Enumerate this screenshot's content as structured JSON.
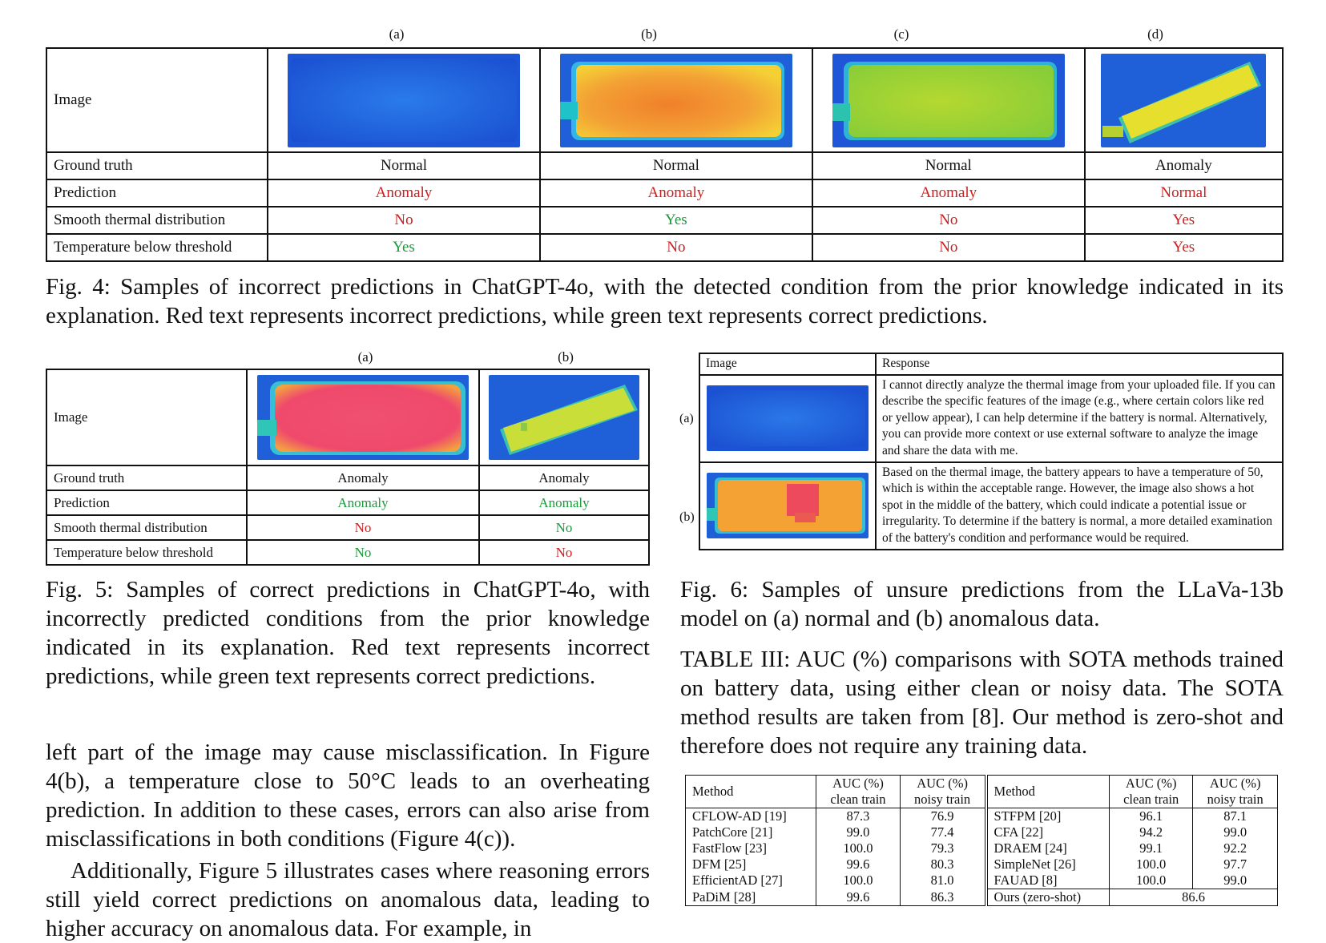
{
  "fig4": {
    "col_labels": [
      "(a)",
      "(b)",
      "(c)",
      "(d)"
    ],
    "row_labels": [
      "Image",
      "Ground truth",
      "Prediction",
      "Smooth thermal distribution",
      "Temperature below threshold"
    ],
    "ground_truth": [
      "Normal",
      "Normal",
      "Normal",
      "Anomaly"
    ],
    "prediction": [
      "Anomaly",
      "Anomaly",
      "Anomaly",
      "Normal"
    ],
    "smooth": [
      "No",
      "Yes",
      "No",
      "Yes"
    ],
    "temperature": [
      "Yes",
      "No",
      "No",
      "Yes"
    ],
    "caption": "Fig. 4: Samples of incorrect predictions in ChatGPT-4o, with the detected condition from the prior knowledge indicated in its explanation. Red text represents incorrect predictions, while green text represents correct predictions."
  },
  "fig5": {
    "col_labels": [
      "(a)",
      "(b)"
    ],
    "row_labels": [
      "Image",
      "Ground truth",
      "Prediction",
      "Smooth thermal distribution",
      "Temperature below threshold"
    ],
    "ground_truth": [
      "Anomaly",
      "Anomaly"
    ],
    "prediction": [
      "Anomaly",
      "Anomaly"
    ],
    "smooth": [
      "No",
      "No"
    ],
    "temperature": [
      "No",
      "No"
    ],
    "caption": "Fig. 5: Samples of correct predictions in ChatGPT-4o, with incorrectly predicted conditions from the prior knowledge indicated in its explanation. Red text represents incorrect predictions, while green text represents correct predictions."
  },
  "fig6": {
    "header_image": "Image",
    "header_response": "Response",
    "rows": [
      {
        "label": "(a)",
        "response": "I cannot directly analyze the thermal image from your uploaded file. If you can describe the specific features of the image (e.g., where certain colors like red or yellow appear), I can help determine if the battery is normal. Alternatively, you can provide more context or use external software to analyze the image and share the data with me."
      },
      {
        "label": "(b)",
        "response": "Based on the thermal image, the battery appears to have a temperature of 50, which is within the acceptable range. However, the image also shows a hot spot in the middle of the battery, which could indicate a potential issue or irregularity. To determine if the battery is normal, a more detailed examination of the battery's condition and performance would be required."
      }
    ],
    "caption": "Fig. 6: Samples of unsure predictions from the LLaVa-13b model on (a) normal and (b) anomalous data."
  },
  "table3": {
    "caption": "TABLE III: AUC (%) comparisons with SOTA methods trained on battery data, using either clean or noisy data. The SOTA method results are taken from [8]. Our method is zero-shot and therefore does not require any training data.",
    "headers": {
      "method": "Method",
      "clean_1": "AUC (%)",
      "clean_2": "clean train",
      "noisy_1": "AUC (%)",
      "noisy_2": "noisy train"
    },
    "left": [
      {
        "method": "CFLOW-AD [19]",
        "clean": "87.3",
        "noisy": "76.9"
      },
      {
        "method": "PatchCore [21]",
        "clean": "99.0",
        "noisy": "77.4"
      },
      {
        "method": "FastFlow [23]",
        "clean": "100.0",
        "noisy": "79.3"
      },
      {
        "method": "DFM [25]",
        "clean": "99.6",
        "noisy": "80.3"
      },
      {
        "method": "EfficientAD [27]",
        "clean": "100.0",
        "noisy": "81.0"
      },
      {
        "method": "PaDiM [28]",
        "clean": "99.6",
        "noisy": "86.3"
      }
    ],
    "right": [
      {
        "method": "STFPM [20]",
        "clean": "96.1",
        "noisy": "87.1"
      },
      {
        "method": "CFA [22]",
        "clean": "94.2",
        "noisy": "99.0"
      },
      {
        "method": "DRAEM [24]",
        "clean": "99.1",
        "noisy": "92.2"
      },
      {
        "method": "SimpleNet [26]",
        "clean": "100.0",
        "noisy": "97.7"
      },
      {
        "method": "FAUAD [8]",
        "clean": "100.0",
        "noisy": "99.0"
      },
      {
        "method": "Ours (zero-shot)",
        "value": "86.6"
      }
    ]
  },
  "body_text": {
    "p1": "left part of the image may cause misclassification. In Figure 4(b), a temperature close to 50°C leads to an overheating prediction. In addition to these cases, errors can also arise from misclassifications in both conditions (Figure 4(c)).",
    "p2": "Additionally, Figure 5 illustrates cases where reasoning errors still yield correct predictions on anomalous data, leading to higher accuracy on anomalous data. For example, in"
  },
  "colors": {
    "incorrect": "#d01c1c",
    "correct": "#1a9a3a"
  }
}
